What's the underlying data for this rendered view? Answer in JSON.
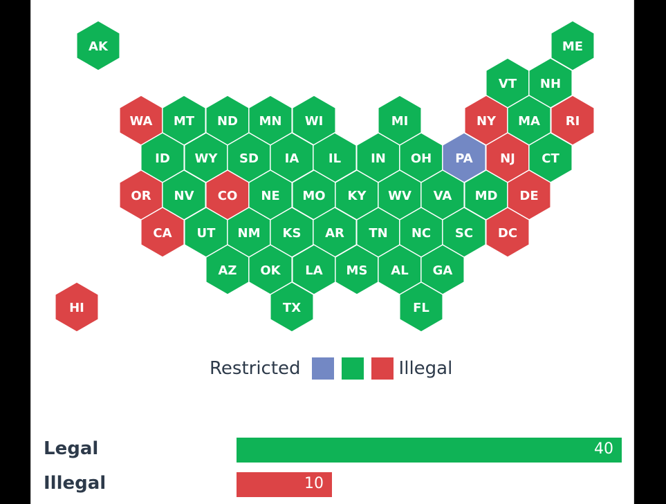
{
  "colors": {
    "legal": "#0fb356",
    "illegal": "#dc4446",
    "restricted": "#7388c4",
    "stroke": "#ffffff"
  },
  "legend": {
    "left_label": "Restricted",
    "right_label": "Illegal",
    "swatches": [
      "restricted",
      "legal",
      "illegal"
    ]
  },
  "states": [
    {
      "abbr": "AK",
      "status": "legal"
    },
    {
      "abbr": "ME",
      "status": "legal"
    },
    {
      "abbr": "VT",
      "status": "legal"
    },
    {
      "abbr": "NH",
      "status": "legal"
    },
    {
      "abbr": "WA",
      "status": "illegal"
    },
    {
      "abbr": "MT",
      "status": "legal"
    },
    {
      "abbr": "ND",
      "status": "legal"
    },
    {
      "abbr": "MN",
      "status": "legal"
    },
    {
      "abbr": "WI",
      "status": "legal"
    },
    {
      "abbr": "MI",
      "status": "legal"
    },
    {
      "abbr": "NY",
      "status": "illegal"
    },
    {
      "abbr": "MA",
      "status": "legal"
    },
    {
      "abbr": "RI",
      "status": "illegal"
    },
    {
      "abbr": "ID",
      "status": "legal"
    },
    {
      "abbr": "WY",
      "status": "legal"
    },
    {
      "abbr": "SD",
      "status": "legal"
    },
    {
      "abbr": "IA",
      "status": "legal"
    },
    {
      "abbr": "IL",
      "status": "legal"
    },
    {
      "abbr": "IN",
      "status": "legal"
    },
    {
      "abbr": "OH",
      "status": "legal"
    },
    {
      "abbr": "PA",
      "status": "restricted"
    },
    {
      "abbr": "NJ",
      "status": "illegal"
    },
    {
      "abbr": "CT",
      "status": "legal"
    },
    {
      "abbr": "OR",
      "status": "illegal"
    },
    {
      "abbr": "NV",
      "status": "legal"
    },
    {
      "abbr": "CO",
      "status": "illegal"
    },
    {
      "abbr": "NE",
      "status": "legal"
    },
    {
      "abbr": "MO",
      "status": "legal"
    },
    {
      "abbr": "KY",
      "status": "legal"
    },
    {
      "abbr": "WV",
      "status": "legal"
    },
    {
      "abbr": "VA",
      "status": "legal"
    },
    {
      "abbr": "MD",
      "status": "legal"
    },
    {
      "abbr": "DE",
      "status": "illegal"
    },
    {
      "abbr": "CA",
      "status": "illegal"
    },
    {
      "abbr": "UT",
      "status": "legal"
    },
    {
      "abbr": "NM",
      "status": "legal"
    },
    {
      "abbr": "KS",
      "status": "legal"
    },
    {
      "abbr": "AR",
      "status": "legal"
    },
    {
      "abbr": "TN",
      "status": "legal"
    },
    {
      "abbr": "NC",
      "status": "legal"
    },
    {
      "abbr": "SC",
      "status": "legal"
    },
    {
      "abbr": "DC",
      "status": "illegal"
    },
    {
      "abbr": "AZ",
      "status": "legal"
    },
    {
      "abbr": "OK",
      "status": "legal"
    },
    {
      "abbr": "LA",
      "status": "legal"
    },
    {
      "abbr": "MS",
      "status": "legal"
    },
    {
      "abbr": "AL",
      "status": "legal"
    },
    {
      "abbr": "GA",
      "status": "legal"
    },
    {
      "abbr": "HI",
      "status": "illegal"
    },
    {
      "abbr": "TX",
      "status": "legal"
    },
    {
      "abbr": "FL",
      "status": "legal"
    }
  ],
  "summary": {
    "max": 40,
    "bars": [
      {
        "label": "Legal",
        "value": 40,
        "status": "legal"
      },
      {
        "label": "Illegal",
        "value": 10,
        "status": "illegal"
      }
    ]
  }
}
